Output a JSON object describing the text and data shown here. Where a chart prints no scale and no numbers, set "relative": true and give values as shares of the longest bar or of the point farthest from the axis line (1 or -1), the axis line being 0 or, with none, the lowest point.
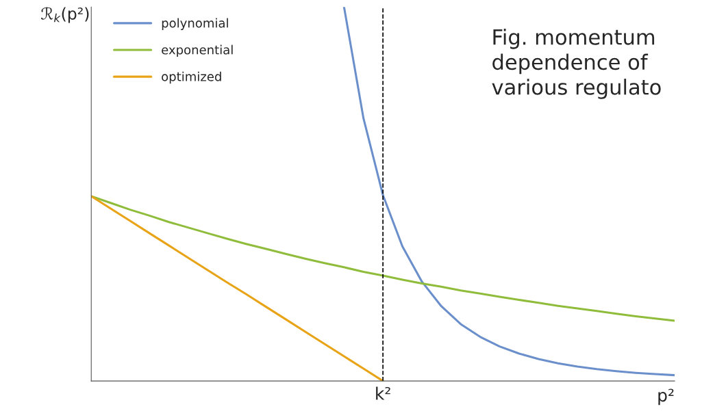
{
  "chart_data": {
    "type": "line",
    "relative": true,
    "ylabel": "ℛ$_{k}$(p²)",
    "xlabel": "p²",
    "legend": "top left",
    "marker": "none",
    "line_style": "solid",
    "categories": [
      null,
      null,
      null,
      null,
      null,
      null,
      null,
      null,
      null,
      null,
      null,
      null,
      null,
      null,
      null,
      null,
      null,
      null,
      null,
      null,
      null,
      null,
      null,
      null,
      null,
      null,
      null,
      null,
      null,
      null,
      null
    ],
    "series": [
      {
        "name": "polynomial",
        "color": "#6a8fcb",
        "values": [
          null,
          null,
          null,
          null,
          null,
          null,
          null,
          null,
          null,
          null,
          null,
          null,
          null,
          1.0,
          0.702,
          0.497,
          0.36,
          0.266,
          0.2,
          0.152,
          0.118,
          0.0924,
          0.0733,
          0.0588,
          0.0474,
          0.0386,
          0.0318,
          0.0263,
          0.0219,
          0.0184,
          0.0155
        ]
      },
      {
        "name": "exponential",
        "color": "#8fbc3a",
        "values": [
          0.494,
          0.476,
          0.458,
          0.442,
          0.425,
          0.41,
          0.395,
          0.38,
          0.366,
          0.353,
          0.34,
          0.327,
          0.315,
          0.304,
          0.292,
          0.282,
          0.271,
          0.261,
          0.252,
          0.242,
          0.234,
          0.225,
          0.217,
          0.209,
          0.201,
          0.194,
          0.187,
          0.18,
          0.173,
          0.167,
          0.161
        ]
      },
      {
        "name": "optimized",
        "color": "#e8a317",
        "values": [
          0.494,
          0.461,
          0.428,
          0.395,
          0.362,
          0.329,
          0.296,
          0.263,
          0.231,
          0.198,
          0.165,
          0.132,
          0.099,
          0.066,
          0.033,
          0,
          null,
          null,
          null,
          null,
          null,
          null,
          null,
          null,
          null,
          null,
          null,
          null,
          null,
          null,
          null
        ]
      }
    ],
    "annotations": [
      "k²",
      "Fig. momentum dependence of various regulato"
    ]
  }
}
